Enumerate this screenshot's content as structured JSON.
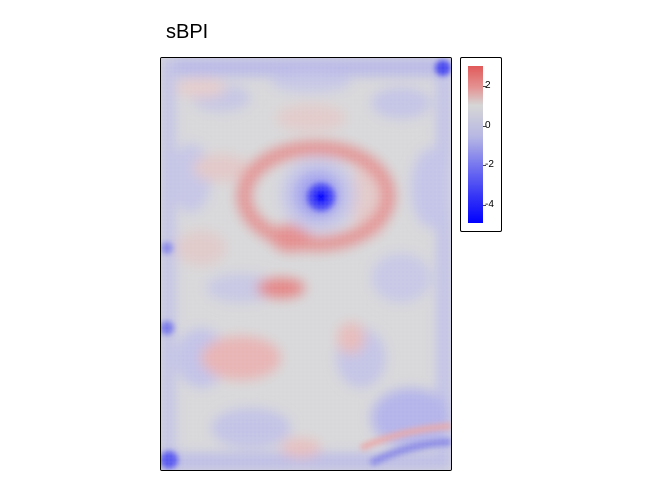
{
  "map": {
    "title": "sBPI"
  },
  "legend": {
    "ticks": [
      "2",
      "0",
      "-2",
      "-4"
    ],
    "colors": {
      "high": "#e15a5a",
      "mid": "#d6d6d6",
      "low": "#0000ff"
    }
  }
}
